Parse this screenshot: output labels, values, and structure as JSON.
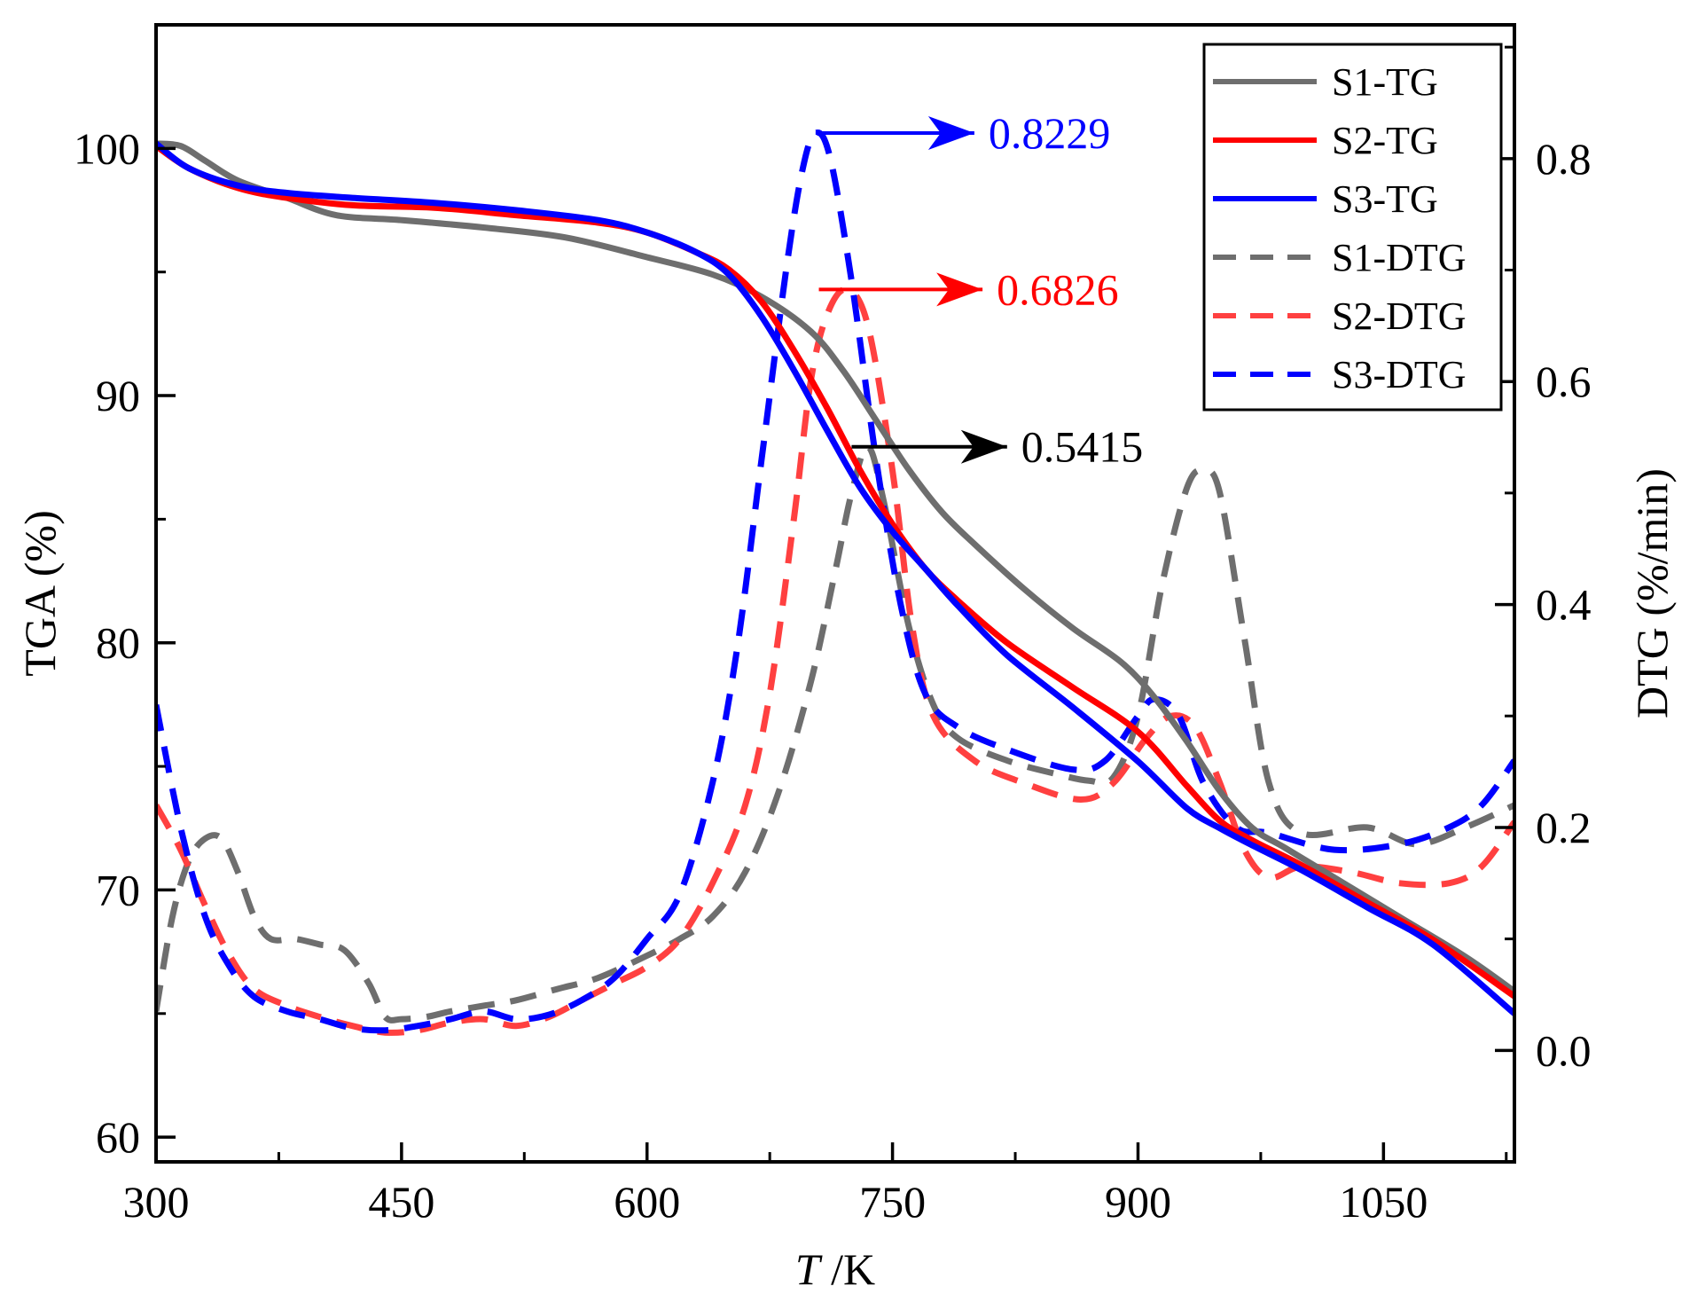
{
  "chart_data": {
    "type": "line",
    "xlabel_italic": "T",
    "xlabel_unit": " /K",
    "ylabel": "TGA (%)",
    "y2label": "DTG (%/min)",
    "xlim": [
      300,
      1130
    ],
    "ylim": [
      59,
      105
    ],
    "y2lim": [
      -0.1,
      0.92
    ],
    "xticks": [
      300,
      450,
      600,
      750,
      900,
      1050
    ],
    "yticks": [
      60,
      70,
      80,
      90,
      100
    ],
    "y2ticks": [
      0.0,
      0.2,
      0.4,
      0.6,
      0.8
    ],
    "y2tick_labels": [
      "0.0",
      "0.2",
      "0.4",
      "0.6",
      "0.8"
    ],
    "legend_position": "top-right",
    "series": [
      {
        "name": "S1-TG",
        "axis": "left",
        "color": "#6e6e6e",
        "dash": "solid",
        "points": [
          [
            300,
            100.2
          ],
          [
            315,
            100.1
          ],
          [
            330,
            99.5
          ],
          [
            350,
            98.7
          ],
          [
            380,
            98.0
          ],
          [
            410,
            97.3
          ],
          [
            450,
            97.1
          ],
          [
            500,
            96.8
          ],
          [
            550,
            96.4
          ],
          [
            600,
            95.6
          ],
          [
            640,
            94.9
          ],
          [
            670,
            94.0
          ],
          [
            700,
            92.6
          ],
          [
            720,
            91.0
          ],
          [
            740,
            89.0
          ],
          [
            760,
            87.0
          ],
          [
            780,
            85.3
          ],
          [
            800,
            84.0
          ],
          [
            830,
            82.2
          ],
          [
            860,
            80.6
          ],
          [
            890,
            79.2
          ],
          [
            910,
            77.8
          ],
          [
            930,
            76.0
          ],
          [
            950,
            74.0
          ],
          [
            970,
            72.5
          ],
          [
            990,
            71.7
          ],
          [
            1020,
            70.5
          ],
          [
            1060,
            68.9
          ],
          [
            1100,
            67.3
          ],
          [
            1130,
            65.9
          ]
        ]
      },
      {
        "name": "S2-TG",
        "axis": "left",
        "color": "#ff0000",
        "dash": "solid",
        "points": [
          [
            300,
            100.1
          ],
          [
            320,
            99.2
          ],
          [
            350,
            98.4
          ],
          [
            380,
            98.0
          ],
          [
            420,
            97.7
          ],
          [
            470,
            97.6
          ],
          [
            520,
            97.3
          ],
          [
            570,
            97.0
          ],
          [
            600,
            96.6
          ],
          [
            630,
            95.8
          ],
          [
            650,
            95.1
          ],
          [
            670,
            93.8
          ],
          [
            690,
            91.8
          ],
          [
            710,
            89.5
          ],
          [
            730,
            87.0
          ],
          [
            750,
            84.8
          ],
          [
            770,
            83.0
          ],
          [
            790,
            81.7
          ],
          [
            820,
            80.0
          ],
          [
            860,
            78.2
          ],
          [
            900,
            76.4
          ],
          [
            930,
            74.2
          ],
          [
            950,
            72.8
          ],
          [
            970,
            72.0
          ],
          [
            1000,
            71.0
          ],
          [
            1040,
            69.5
          ],
          [
            1080,
            68.0
          ],
          [
            1130,
            65.7
          ]
        ]
      },
      {
        "name": "S3-TG",
        "axis": "left",
        "color": "#0000ff",
        "dash": "solid",
        "points": [
          [
            300,
            100.2
          ],
          [
            320,
            99.2
          ],
          [
            350,
            98.5
          ],
          [
            380,
            98.2
          ],
          [
            420,
            98.0
          ],
          [
            470,
            97.8
          ],
          [
            520,
            97.5
          ],
          [
            570,
            97.1
          ],
          [
            600,
            96.6
          ],
          [
            630,
            95.8
          ],
          [
            650,
            94.9
          ],
          [
            670,
            93.2
          ],
          [
            690,
            91.0
          ],
          [
            710,
            88.6
          ],
          [
            730,
            86.3
          ],
          [
            750,
            84.5
          ],
          [
            770,
            83.0
          ],
          [
            790,
            81.5
          ],
          [
            820,
            79.5
          ],
          [
            860,
            77.4
          ],
          [
            900,
            75.2
          ],
          [
            930,
            73.3
          ],
          [
            950,
            72.5
          ],
          [
            970,
            71.8
          ],
          [
            1000,
            70.8
          ],
          [
            1040,
            69.3
          ],
          [
            1080,
            67.8
          ],
          [
            1130,
            65.0
          ]
        ]
      },
      {
        "name": "S1-DTG",
        "axis": "right",
        "color": "#6e6e6e",
        "dash": "dashed",
        "points": [
          [
            300,
            0.035
          ],
          [
            310,
            0.12
          ],
          [
            320,
            0.17
          ],
          [
            330,
            0.19
          ],
          [
            340,
            0.19
          ],
          [
            350,
            0.16
          ],
          [
            360,
            0.12
          ],
          [
            370,
            0.1
          ],
          [
            385,
            0.1
          ],
          [
            400,
            0.095
          ],
          [
            415,
            0.09
          ],
          [
            430,
            0.06
          ],
          [
            440,
            0.03
          ],
          [
            450,
            0.028
          ],
          [
            465,
            0.03
          ],
          [
            480,
            0.035
          ],
          [
            500,
            0.04
          ],
          [
            520,
            0.045
          ],
          [
            545,
            0.055
          ],
          [
            570,
            0.065
          ],
          [
            600,
            0.085
          ],
          [
            620,
            0.1
          ],
          [
            640,
            0.12
          ],
          [
            660,
            0.16
          ],
          [
            680,
            0.23
          ],
          [
            700,
            0.33
          ],
          [
            715,
            0.43
          ],
          [
            725,
            0.5
          ],
          [
            735,
            0.5415
          ],
          [
            745,
            0.49
          ],
          [
            760,
            0.38
          ],
          [
            775,
            0.31
          ],
          [
            790,
            0.28
          ],
          [
            820,
            0.26
          ],
          [
            850,
            0.248
          ],
          [
            870,
            0.242
          ],
          [
            885,
            0.245
          ],
          [
            900,
            0.3
          ],
          [
            915,
            0.42
          ],
          [
            930,
            0.505
          ],
          [
            940,
            0.52
          ],
          [
            950,
            0.5
          ],
          [
            965,
            0.37
          ],
          [
            980,
            0.24
          ],
          [
            1000,
            0.195
          ],
          [
            1040,
            0.2
          ],
          [
            1070,
            0.185
          ],
          [
            1100,
            0.2
          ],
          [
            1130,
            0.22
          ]
        ]
      },
      {
        "name": "S2-DTG",
        "axis": "right",
        "color": "#ff4040",
        "dash": "dashed",
        "points": [
          [
            300,
            0.22
          ],
          [
            315,
            0.18
          ],
          [
            330,
            0.13
          ],
          [
            345,
            0.085
          ],
          [
            360,
            0.055
          ],
          [
            380,
            0.04
          ],
          [
            400,
            0.03
          ],
          [
            420,
            0.022
          ],
          [
            440,
            0.016
          ],
          [
            460,
            0.018
          ],
          [
            480,
            0.025
          ],
          [
            500,
            0.028
          ],
          [
            520,
            0.022
          ],
          [
            540,
            0.03
          ],
          [
            560,
            0.045
          ],
          [
            580,
            0.06
          ],
          [
            600,
            0.075
          ],
          [
            620,
            0.1
          ],
          [
            640,
            0.15
          ],
          [
            660,
            0.22
          ],
          [
            675,
            0.32
          ],
          [
            690,
            0.48
          ],
          [
            700,
            0.6
          ],
          [
            710,
            0.66
          ],
          [
            722,
            0.6826
          ],
          [
            735,
            0.65
          ],
          [
            750,
            0.52
          ],
          [
            762,
            0.38
          ],
          [
            775,
            0.3
          ],
          [
            800,
            0.26
          ],
          [
            830,
            0.24
          ],
          [
            865,
            0.225
          ],
          [
            885,
            0.24
          ],
          [
            905,
            0.28
          ],
          [
            920,
            0.3
          ],
          [
            935,
            0.29
          ],
          [
            950,
            0.24
          ],
          [
            965,
            0.18
          ],
          [
            980,
            0.155
          ],
          [
            1000,
            0.165
          ],
          [
            1030,
            0.16
          ],
          [
            1060,
            0.15
          ],
          [
            1090,
            0.15
          ],
          [
            1110,
            0.165
          ],
          [
            1130,
            0.205
          ]
        ]
      },
      {
        "name": "S3-DTG",
        "axis": "right",
        "color": "#0000ff",
        "dash": "dashed",
        "points": [
          [
            300,
            0.31
          ],
          [
            315,
            0.2
          ],
          [
            330,
            0.12
          ],
          [
            345,
            0.075
          ],
          [
            360,
            0.048
          ],
          [
            380,
            0.035
          ],
          [
            400,
            0.028
          ],
          [
            420,
            0.02
          ],
          [
            440,
            0.018
          ],
          [
            460,
            0.022
          ],
          [
            480,
            0.028
          ],
          [
            500,
            0.035
          ],
          [
            520,
            0.028
          ],
          [
            540,
            0.032
          ],
          [
            560,
            0.045
          ],
          [
            580,
            0.065
          ],
          [
            600,
            0.1
          ],
          [
            620,
            0.14
          ],
          [
            640,
            0.24
          ],
          [
            655,
            0.36
          ],
          [
            670,
            0.53
          ],
          [
            685,
            0.7
          ],
          [
            695,
            0.79
          ],
          [
            703,
            0.8229
          ],
          [
            712,
            0.8
          ],
          [
            725,
            0.69
          ],
          [
            740,
            0.53
          ],
          [
            755,
            0.4
          ],
          [
            770,
            0.32
          ],
          [
            790,
            0.29
          ],
          [
            820,
            0.27
          ],
          [
            860,
            0.252
          ],
          [
            880,
            0.26
          ],
          [
            900,
            0.3
          ],
          [
            910,
            0.315
          ],
          [
            925,
            0.3
          ],
          [
            940,
            0.24
          ],
          [
            960,
            0.2
          ],
          [
            980,
            0.195
          ],
          [
            1020,
            0.18
          ],
          [
            1060,
            0.185
          ],
          [
            1090,
            0.2
          ],
          [
            1110,
            0.22
          ],
          [
            1130,
            0.26
          ]
        ]
      }
    ],
    "annotations": [
      {
        "text": "0.8229",
        "color": "#0000ff",
        "x_from": 703,
        "x_to": 800,
        "y2": 0.8229
      },
      {
        "text": "0.6826",
        "color": "#ff0000",
        "x_from": 705,
        "x_to": 805,
        "y2": 0.6826
      },
      {
        "text": "0.5415",
        "color": "#000000",
        "x_from": 725,
        "x_to": 820,
        "y2": 0.5415
      }
    ]
  }
}
